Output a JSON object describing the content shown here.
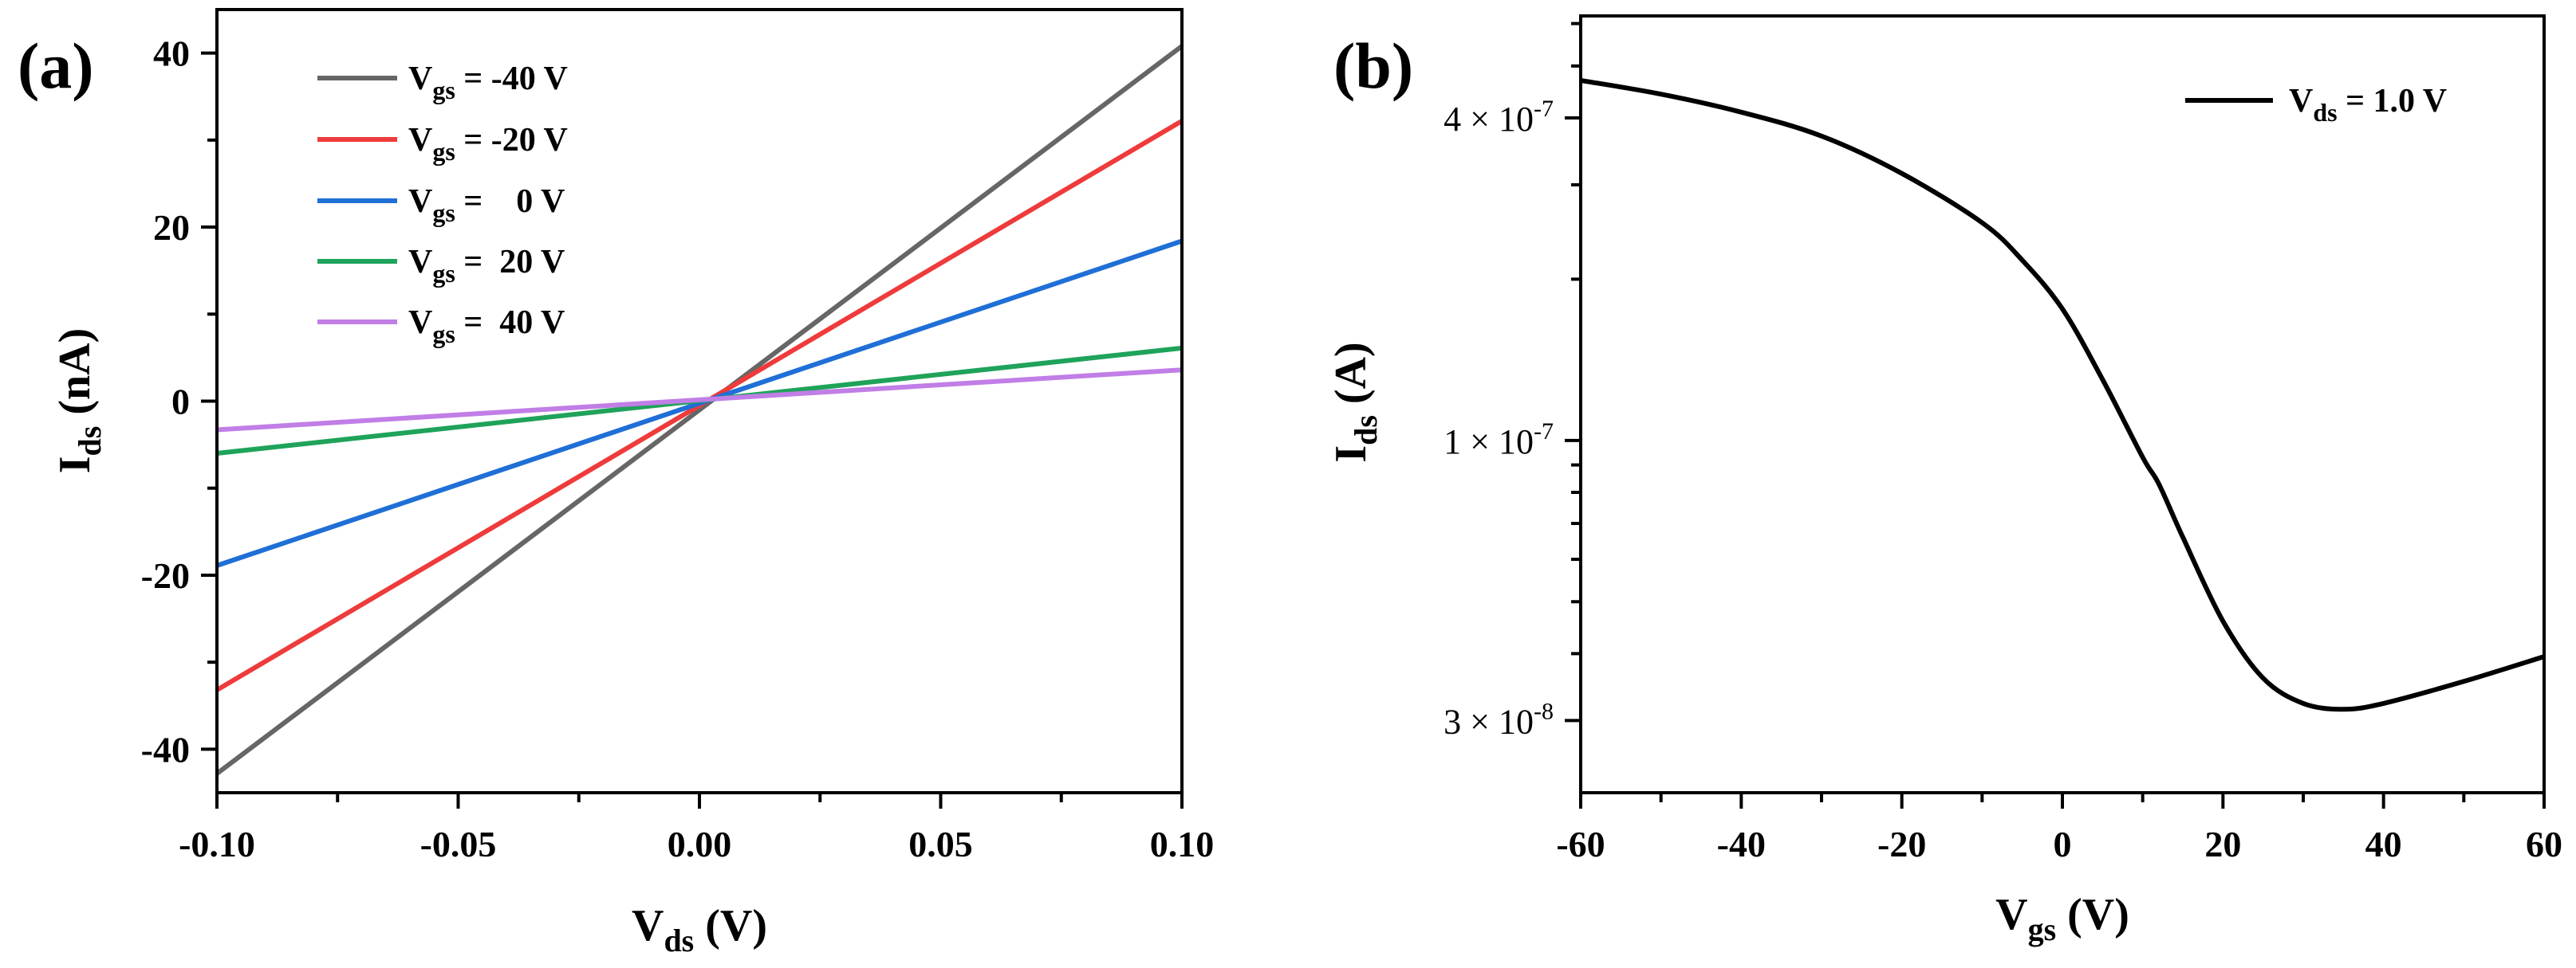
{
  "figure": {
    "panel_a_label": "(a)",
    "panel_b_label": "(b)"
  },
  "colors": {
    "vgs_m40": "#666666",
    "vgs_m20": "#ee3b3b",
    "vgs_0": "#1f6fd6",
    "vgs_20": "#1fa35a",
    "vgs_40": "#c07ee6",
    "vds_1": "#000000"
  },
  "chart_data": [
    {
      "type": "line",
      "panel": "(a)",
      "title": "",
      "xlabel": {
        "main": "V",
        "sub": "ds",
        "unit": " (V)"
      },
      "ylabel": {
        "main": "I",
        "sub": "ds",
        "unit": " (nA)"
      },
      "xlim": [
        -0.1,
        0.1
      ],
      "ylim": [
        -45,
        45
      ],
      "x_ticks": [
        -0.1,
        -0.05,
        0.0,
        0.05,
        0.1
      ],
      "x_tick_labels": [
        "-0.10",
        "-0.05",
        "0.00",
        "0.05",
        "0.10"
      ],
      "y_ticks": [
        -40,
        -20,
        0,
        20,
        40
      ],
      "y_tick_labels": [
        "-40",
        "-20",
        "0",
        "20",
        "40"
      ],
      "legend_position": "top-left",
      "series": [
        {
          "name": "-40",
          "label": {
            "main": "V",
            "sub": "gs",
            "rest": " = -40 V"
          },
          "color_key": "vgs_m40",
          "x": [
            -0.1,
            0.1
          ],
          "y": [
            -42.8,
            40.8
          ]
        },
        {
          "name": "-20",
          "label": {
            "main": "V",
            "sub": "gs",
            "rest": " = -20 V"
          },
          "color_key": "vgs_m20",
          "x": [
            -0.1,
            0.1
          ],
          "y": [
            -33.2,
            32.2
          ]
        },
        {
          "name": "0",
          "label": {
            "main": "V",
            "sub": "gs",
            "rest": " =    0 V"
          },
          "color_key": "vgs_0",
          "x": [
            -0.1,
            0.1
          ],
          "y": [
            -18.9,
            18.4
          ]
        },
        {
          "name": "20",
          "label": {
            "main": "V",
            "sub": "gs",
            "rest": " =  20 V"
          },
          "color_key": "vgs_20",
          "x": [
            -0.1,
            0.1
          ],
          "y": [
            -6.0,
            6.1
          ]
        },
        {
          "name": "40",
          "label": {
            "main": "V",
            "sub": "gs",
            "rest": " =  40 V"
          },
          "color_key": "vgs_40",
          "x": [
            -0.1,
            0.1
          ],
          "y": [
            -3.3,
            3.6
          ]
        }
      ]
    },
    {
      "type": "line",
      "panel": "(b)",
      "title": "",
      "yscale": "log",
      "xlabel": {
        "main": "V",
        "sub": "gs",
        "unit": " (V)"
      },
      "ylabel": {
        "main": "I",
        "sub": "ds",
        "unit": " (A)"
      },
      "xlim": [
        -60,
        60
      ],
      "ylim": [
        2.2e-08,
        6.2e-07
      ],
      "x_ticks": [
        -60,
        -40,
        -20,
        0,
        20,
        40,
        60
      ],
      "x_tick_labels": [
        "-60",
        "-40",
        "-20",
        "0",
        "20",
        "40",
        "60"
      ],
      "y_ticks": [
        4e-07,
        1e-07,
        3e-08
      ],
      "y_tick_labels": [
        {
          "base": "4 × 10",
          "exp": "-7"
        },
        {
          "base": "1 × 10",
          "exp": "-7"
        },
        {
          "base": "3 × 10",
          "exp": "-8"
        }
      ],
      "legend_position": "top-right",
      "series": [
        {
          "name": "1.0",
          "label": {
            "main": "V",
            "sub": "ds",
            "rest": " = 1.0 V"
          },
          "color_key": "vds_1",
          "x": [
            -60,
            -50,
            -40,
            -30,
            -20,
            -10,
            -5,
            0,
            5,
            10,
            12,
            15,
            20,
            25,
            30,
            35,
            40,
            50,
            60
          ],
          "y": [
            4.7e-07,
            4.43e-07,
            4.1e-07,
            3.7e-07,
            3.15e-07,
            2.55e-07,
            2.17e-07,
            1.76e-07,
            1.3e-07,
            9.3e-08,
            8.3e-08,
            6.6e-08,
            4.6e-08,
            3.6e-08,
            3.23e-08,
            3.15e-08,
            3.23e-08,
            3.55e-08,
            3.95e-08
          ]
        }
      ]
    }
  ]
}
